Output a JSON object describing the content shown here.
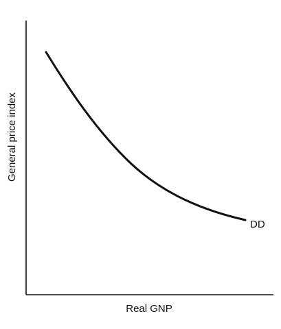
{
  "diagram": {
    "x_axis_label": "Real GNP",
    "y_axis_label": "General price index",
    "curve_label": "DD"
  }
}
